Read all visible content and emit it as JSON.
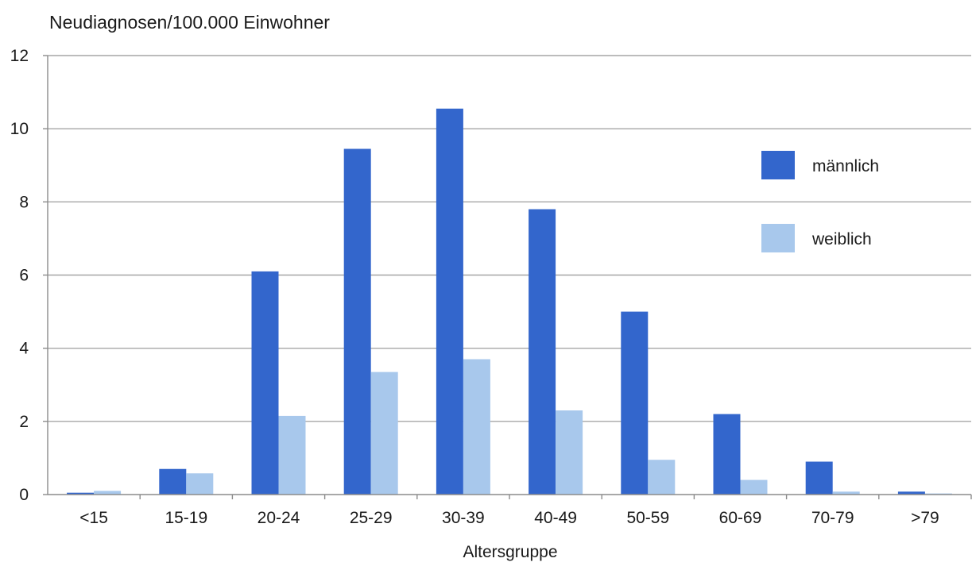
{
  "chart_data": {
    "type": "bar",
    "title": "Neudiagnosen/100.000 Einwohner",
    "xlabel": "Altersgruppe",
    "ylabel": "",
    "ylim": [
      0,
      12
    ],
    "yticks": [
      0,
      2,
      4,
      6,
      8,
      10,
      12
    ],
    "grid": true,
    "legend_position": "right",
    "categories": [
      "<15",
      "15-19",
      "20-24",
      "25-29",
      "30-39",
      "40-49",
      "50-59",
      "60-69",
      "70-79",
      ">79"
    ],
    "series": [
      {
        "name": "männlich",
        "color": "#3366cc",
        "values": [
          0.05,
          0.7,
          6.1,
          9.45,
          10.55,
          7.8,
          5.0,
          2.2,
          0.9,
          0.08
        ]
      },
      {
        "name": "weiblich",
        "color": "#a8c8ec",
        "values": [
          0.1,
          0.58,
          2.15,
          3.35,
          3.7,
          2.3,
          0.95,
          0.4,
          0.08,
          0.03
        ]
      }
    ]
  }
}
